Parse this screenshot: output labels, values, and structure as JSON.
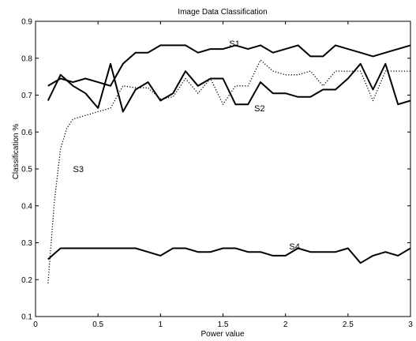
{
  "chart_data": {
    "type": "line",
    "title": "Image Data Classification",
    "xlabel": "Power value",
    "ylabel": "Classification %",
    "xlim": [
      0,
      3
    ],
    "ylim": [
      0.1,
      0.9
    ],
    "xticks": [
      0,
      0.5,
      1,
      1.5,
      2,
      2.5,
      3
    ],
    "xtick_labels": [
      "0",
      "0.5",
      "1",
      "1.5",
      "2",
      "2.5",
      "3"
    ],
    "yticks": [
      0.1,
      0.2,
      0.3,
      0.4,
      0.5,
      0.6,
      0.7,
      0.8,
      0.9
    ],
    "ytick_labels": [
      "0.1",
      "0.2",
      "0.3",
      "0.4",
      "0.5",
      "0.6",
      "0.7",
      "0.8",
      "0.9"
    ],
    "grid": false,
    "series": [
      {
        "name": "S1",
        "style": "solid",
        "color": "#000000",
        "label_at": [
          1.55,
          0.84
        ],
        "x": [
          0.1,
          0.2,
          0.3,
          0.4,
          0.5,
          0.6,
          0.7,
          0.8,
          0.9,
          1.0,
          1.1,
          1.2,
          1.3,
          1.4,
          1.5,
          1.6,
          1.7,
          1.8,
          1.9,
          2.0,
          2.1,
          2.2,
          2.3,
          2.4,
          2.5,
          2.6,
          2.7,
          2.8,
          2.9,
          3.0
        ],
        "y": [
          0.725,
          0.745,
          0.735,
          0.745,
          0.735,
          0.725,
          0.785,
          0.815,
          0.815,
          0.835,
          0.835,
          0.835,
          0.815,
          0.825,
          0.825,
          0.835,
          0.825,
          0.835,
          0.815,
          0.825,
          0.835,
          0.805,
          0.805,
          0.835,
          0.825,
          0.815,
          0.805,
          0.815,
          0.825,
          0.835
        ]
      },
      {
        "name": "S2",
        "style": "solid",
        "color": "#000000",
        "label_at": [
          1.75,
          0.665
        ],
        "x": [
          0.1,
          0.2,
          0.3,
          0.4,
          0.5,
          0.6,
          0.7,
          0.8,
          0.9,
          1.0,
          1.1,
          1.2,
          1.3,
          1.4,
          1.5,
          1.6,
          1.7,
          1.8,
          1.9,
          2.0,
          2.1,
          2.2,
          2.3,
          2.4,
          2.5,
          2.6,
          2.7,
          2.8,
          2.9,
          3.0
        ],
        "y": [
          0.685,
          0.755,
          0.725,
          0.705,
          0.665,
          0.785,
          0.655,
          0.715,
          0.735,
          0.685,
          0.705,
          0.765,
          0.725,
          0.745,
          0.745,
          0.675,
          0.675,
          0.735,
          0.705,
          0.705,
          0.695,
          0.695,
          0.715,
          0.715,
          0.745,
          0.785,
          0.715,
          0.785,
          0.675,
          0.685
        ]
      },
      {
        "name": "S3",
        "style": "dotted",
        "color": "#000000",
        "label_at": [
          0.3,
          0.5
        ],
        "x": [
          0.1,
          0.15,
          0.2,
          0.25,
          0.3,
          0.4,
          0.5,
          0.6,
          0.7,
          0.8,
          0.9,
          1.0,
          1.1,
          1.2,
          1.3,
          1.4,
          1.5,
          1.6,
          1.7,
          1.8,
          1.9,
          2.0,
          2.1,
          2.2,
          2.3,
          2.4,
          2.5,
          2.6,
          2.7,
          2.8,
          2.9,
          3.0
        ],
        "y": [
          0.19,
          0.41,
          0.555,
          0.61,
          0.635,
          0.645,
          0.655,
          0.665,
          0.725,
          0.72,
          0.72,
          0.69,
          0.695,
          0.745,
          0.705,
          0.745,
          0.675,
          0.725,
          0.725,
          0.795,
          0.765,
          0.755,
          0.755,
          0.765,
          0.725,
          0.765,
          0.765,
          0.765,
          0.685,
          0.765,
          0.765,
          0.765
        ]
      },
      {
        "name": "S4",
        "style": "solid",
        "color": "#000000",
        "label_at": [
          2.03,
          0.29
        ],
        "x": [
          0.1,
          0.2,
          0.3,
          0.4,
          0.5,
          0.6,
          0.7,
          0.8,
          0.9,
          1.0,
          1.1,
          1.2,
          1.3,
          1.4,
          1.5,
          1.6,
          1.7,
          1.8,
          1.9,
          2.0,
          2.1,
          2.2,
          2.3,
          2.4,
          2.5,
          2.6,
          2.7,
          2.8,
          2.9,
          3.0
        ],
        "y": [
          0.255,
          0.285,
          0.285,
          0.285,
          0.285,
          0.285,
          0.285,
          0.285,
          0.275,
          0.265,
          0.285,
          0.285,
          0.275,
          0.275,
          0.285,
          0.285,
          0.275,
          0.275,
          0.265,
          0.265,
          0.285,
          0.275,
          0.275,
          0.275,
          0.285,
          0.245,
          0.265,
          0.275,
          0.265,
          0.285
        ]
      }
    ]
  }
}
